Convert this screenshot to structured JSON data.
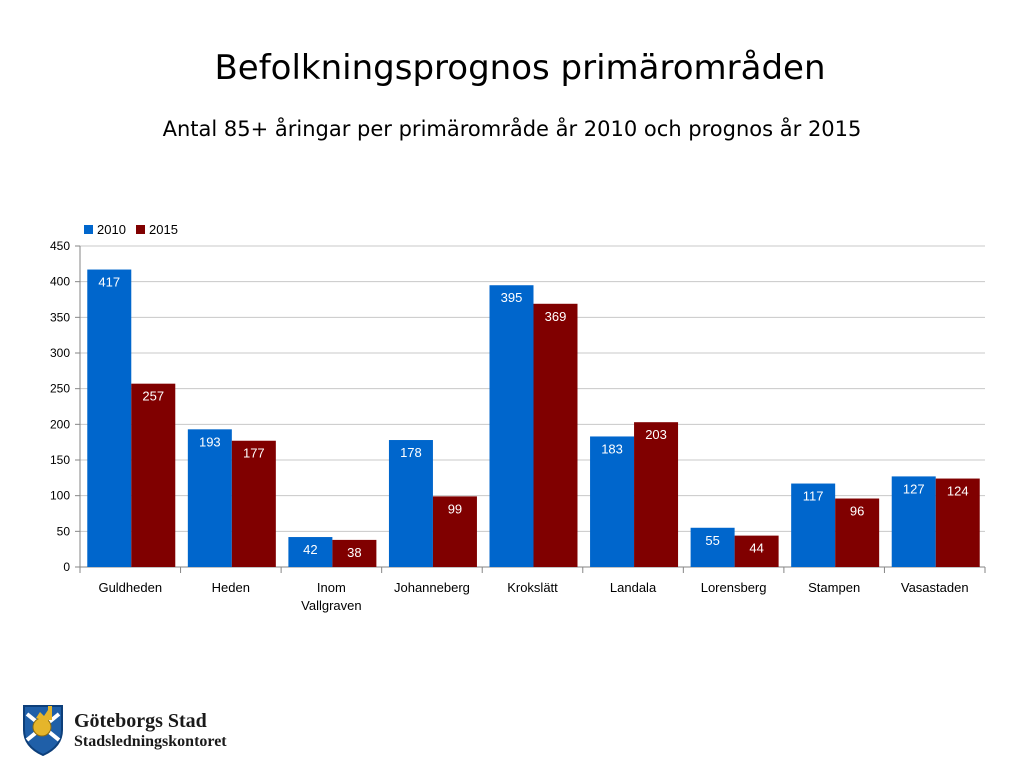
{
  "slide": {
    "title": "Befolkningsprognos primärområden",
    "subtitle": "Antal 85+ åringar per primärområde år 2010 och prognos år 2015"
  },
  "chart_data": {
    "type": "bar",
    "categories": [
      "Guldheden",
      "Heden",
      "Inom Vallgraven",
      "Johanneberg",
      "Krokslätt",
      "Landala",
      "Lorensberg",
      "Stampen",
      "Vasastaden"
    ],
    "series": [
      {
        "name": "2010",
        "color": "#0066cc",
        "values": [
          417,
          193,
          42,
          178,
          395,
          183,
          55,
          117,
          127
        ]
      },
      {
        "name": "2015",
        "color": "#800000",
        "values": [
          257,
          177,
          38,
          99,
          369,
          203,
          44,
          96,
          124
        ]
      }
    ],
    "ylim": [
      0,
      450
    ],
    "yticks": [
      0,
      50,
      100,
      150,
      200,
      250,
      300,
      350,
      400,
      450
    ],
    "grid": true,
    "legend": "top-left",
    "data_labels": true
  },
  "logo": {
    "line1": "Göteborgs Stad",
    "line2": "Stadsledningskontoret"
  }
}
